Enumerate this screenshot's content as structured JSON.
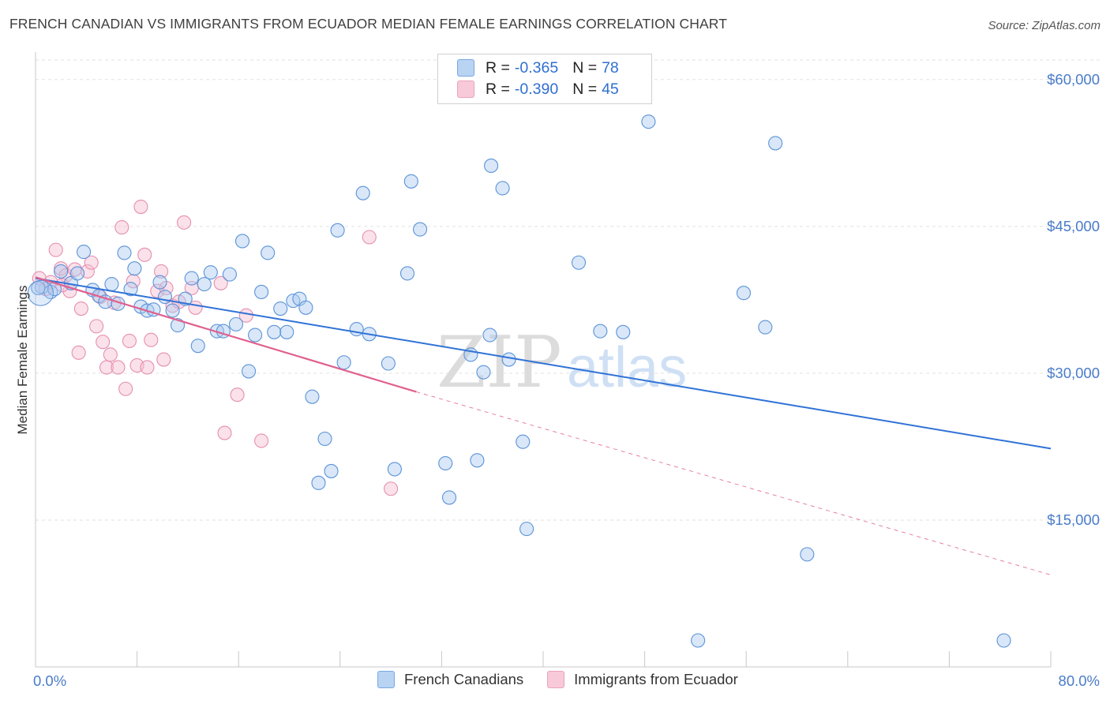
{
  "header": {
    "title": "FRENCH CANADIAN VS IMMIGRANTS FROM ECUADOR MEDIAN FEMALE EARNINGS CORRELATION CHART",
    "source": "Source: ZipAtlas.com"
  },
  "legend": {
    "rows": [
      {
        "r_label": "R = ",
        "r_value": "-0.365",
        "n_label": "N = ",
        "n_value": "78"
      },
      {
        "r_label": "R = ",
        "r_value": "-0.390",
        "n_label": "N = ",
        "n_value": "45"
      }
    ]
  },
  "bottom_legend": {
    "items": [
      "French Canadians",
      "Immigrants from Ecuador"
    ]
  },
  "watermark": {
    "zip": "ZIP",
    "atlas": "atlas"
  },
  "colors": {
    "blue_fill": "#aac9f0",
    "blue_stroke": "#5b93d8",
    "blue_line": "#2f72d6",
    "pink_fill": "#f6bdd0",
    "pink_stroke": "#e58fb0",
    "pink_line": "#e0608e",
    "grid": "#e2e2e2",
    "axis_text": "#4a7cc9"
  },
  "chart_data": {
    "type": "scatter",
    "title": "FRENCH CANADIAN VS IMMIGRANTS FROM ECUADOR MEDIAN FEMALE EARNINGS CORRELATION CHART",
    "xlabel": "",
    "ylabel": "Median Female Earnings",
    "xlim": [
      0,
      80
    ],
    "ylim": [
      0,
      62000
    ],
    "x_tick_labels": [
      "0.0%",
      "80.0%"
    ],
    "y_ticks": [
      15000,
      30000,
      45000,
      60000
    ],
    "y_tick_labels": [
      "$15,000",
      "$30,000",
      "$45,000",
      "$60,000"
    ],
    "series": [
      {
        "name": "French Canadians",
        "R": -0.365,
        "N": 78,
        "trend": {
          "x": [
            0,
            80
          ],
          "y": [
            39700,
            22300
          ]
        },
        "points": [
          [
            0.5,
            38800
          ],
          [
            1.2,
            38300
          ],
          [
            1.5,
            38600
          ],
          [
            2.0,
            40400
          ],
          [
            2.8,
            39200
          ],
          [
            3.3,
            40200
          ],
          [
            3.8,
            42400
          ],
          [
            4.5,
            38500
          ],
          [
            5.0,
            37900
          ],
          [
            5.5,
            37300
          ],
          [
            6.0,
            39100
          ],
          [
            6.5,
            37100
          ],
          [
            7.0,
            42300
          ],
          [
            7.5,
            38600
          ],
          [
            7.8,
            40700
          ],
          [
            8.3,
            36800
          ],
          [
            8.8,
            36400
          ],
          [
            9.3,
            36500
          ],
          [
            9.8,
            39300
          ],
          [
            10.2,
            37800
          ],
          [
            10.8,
            36400
          ],
          [
            11.2,
            34900
          ],
          [
            11.8,
            37600
          ],
          [
            12.3,
            39700
          ],
          [
            12.8,
            32800
          ],
          [
            13.3,
            39100
          ],
          [
            13.8,
            40300
          ],
          [
            14.3,
            34300
          ],
          [
            14.8,
            34300
          ],
          [
            15.3,
            40100
          ],
          [
            15.8,
            35000
          ],
          [
            16.3,
            43500
          ],
          [
            16.8,
            30200
          ],
          [
            17.3,
            33900
          ],
          [
            17.8,
            38300
          ],
          [
            18.3,
            42300
          ],
          [
            18.8,
            34200
          ],
          [
            19.3,
            36600
          ],
          [
            19.8,
            34200
          ],
          [
            20.3,
            37400
          ],
          [
            20.8,
            37600
          ],
          [
            21.3,
            36700
          ],
          [
            21.8,
            27600
          ],
          [
            22.3,
            18800
          ],
          [
            22.8,
            23300
          ],
          [
            23.3,
            20000
          ],
          [
            23.8,
            44600
          ],
          [
            24.3,
            31100
          ],
          [
            25.3,
            34500
          ],
          [
            25.8,
            48400
          ],
          [
            26.3,
            34000
          ],
          [
            27.8,
            31000
          ],
          [
            28.3,
            20200
          ],
          [
            29.3,
            40200
          ],
          [
            29.6,
            49600
          ],
          [
            30.3,
            44700
          ],
          [
            32.3,
            20800
          ],
          [
            32.6,
            17300
          ],
          [
            34.3,
            31900
          ],
          [
            34.8,
            21100
          ],
          [
            35.3,
            30100
          ],
          [
            35.8,
            33900
          ],
          [
            35.9,
            51200
          ],
          [
            36.8,
            48900
          ],
          [
            37.3,
            31400
          ],
          [
            38.4,
            23000
          ],
          [
            38.7,
            14100
          ],
          [
            42.8,
            41300
          ],
          [
            44.5,
            34300
          ],
          [
            46.3,
            34200
          ],
          [
            48.3,
            55700
          ],
          [
            52.2,
            2700
          ],
          [
            55.8,
            38200
          ],
          [
            57.5,
            34700
          ],
          [
            58.3,
            53500
          ],
          [
            60.8,
            11500
          ],
          [
            76.3,
            2700
          ],
          [
            0.2,
            38700
          ]
        ]
      },
      {
        "name": "Immigrants from Ecuador",
        "R": -0.39,
        "N": 45,
        "trend": {
          "x": [
            0,
            30
          ],
          "y": [
            39800,
            28100
          ]
        },
        "trend_extension": {
          "x": [
            30,
            80
          ],
          "y": [
            28100,
            9400
          ]
        },
        "points": [
          [
            0.3,
            39700
          ],
          [
            0.8,
            38600
          ],
          [
            1.2,
            39300
          ],
          [
            1.6,
            42600
          ],
          [
            2.0,
            40700
          ],
          [
            2.4,
            40000
          ],
          [
            2.7,
            38400
          ],
          [
            3.1,
            40600
          ],
          [
            3.4,
            32100
          ],
          [
            3.6,
            36600
          ],
          [
            4.1,
            40400
          ],
          [
            4.4,
            41300
          ],
          [
            4.8,
            34800
          ],
          [
            5.1,
            37800
          ],
          [
            5.3,
            33200
          ],
          [
            5.6,
            30600
          ],
          [
            5.9,
            31900
          ],
          [
            6.2,
            37200
          ],
          [
            6.5,
            30600
          ],
          [
            6.8,
            44900
          ],
          [
            7.1,
            28400
          ],
          [
            7.4,
            33300
          ],
          [
            7.7,
            39400
          ],
          [
            8.0,
            30800
          ],
          [
            8.3,
            47000
          ],
          [
            8.6,
            42100
          ],
          [
            8.8,
            30600
          ],
          [
            9.1,
            33400
          ],
          [
            9.6,
            38400
          ],
          [
            9.9,
            40400
          ],
          [
            10.1,
            31400
          ],
          [
            10.3,
            38700
          ],
          [
            10.8,
            36900
          ],
          [
            11.3,
            37300
          ],
          [
            11.7,
            45400
          ],
          [
            12.3,
            38700
          ],
          [
            12.6,
            36700
          ],
          [
            14.6,
            39200
          ],
          [
            14.9,
            23900
          ],
          [
            15.9,
            27800
          ],
          [
            16.6,
            35900
          ],
          [
            17.8,
            23100
          ],
          [
            26.3,
            43900
          ],
          [
            28.0,
            18200
          ],
          [
            2.1,
            39000
          ]
        ]
      }
    ]
  }
}
